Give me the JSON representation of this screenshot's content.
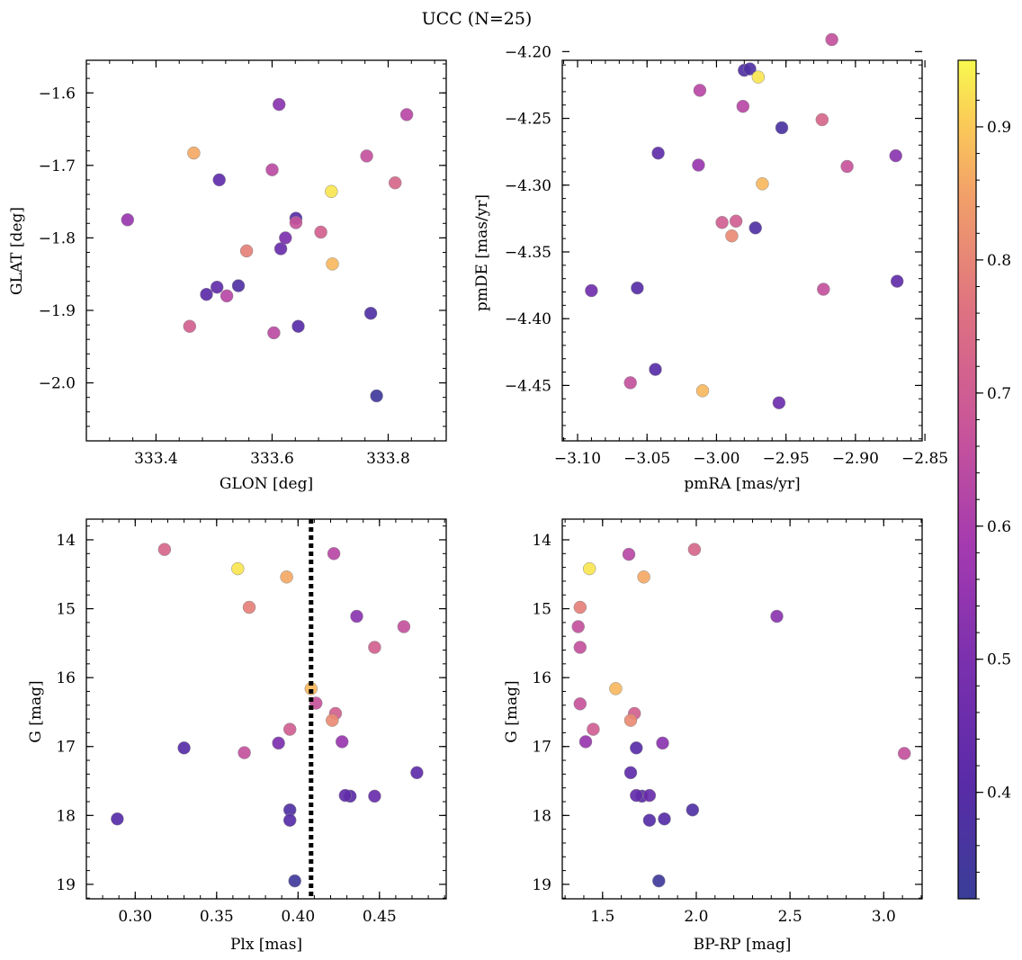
{
  "title": "UCC (N=25)",
  "colorbar": {
    "colormap": "plasma",
    "range": [
      0.32,
      0.95
    ],
    "ticks": [
      "0.4",
      "0.5",
      "0.6",
      "0.7",
      "0.8",
      "0.9"
    ]
  },
  "chart_data": [
    {
      "type": "scatter",
      "xlabel": "GLON [deg]",
      "ylabel": "GLAT [deg]",
      "xlim": [
        333.28,
        333.9
      ],
      "ylim": [
        -2.08,
        -1.555
      ],
      "y_inverted": false,
      "xticks": [
        333.4,
        333.6,
        333.8
      ],
      "xtick_labels": [
        "333.4",
        "333.6",
        "333.8"
      ],
      "yticks": [
        -1.6,
        -1.7,
        -1.8,
        -1.9,
        -2.0
      ],
      "ytick_labels": [
        "−1.6",
        "−1.7",
        "−1.8",
        "−1.9",
        "−2.0"
      ],
      "points": [
        {
          "x": 333.351,
          "y": -1.775,
          "c": 0.56
        },
        {
          "x": 333.465,
          "y": -1.683,
          "c": 0.86
        },
        {
          "x": 333.509,
          "y": -1.72,
          "c": 0.42
        },
        {
          "x": 333.612,
          "y": -1.616,
          "c": 0.53
        },
        {
          "x": 333.6,
          "y": -1.706,
          "c": 0.64
        },
        {
          "x": 333.832,
          "y": -1.63,
          "c": 0.63
        },
        {
          "x": 333.763,
          "y": -1.687,
          "c": 0.66
        },
        {
          "x": 333.812,
          "y": -1.724,
          "c": 0.73
        },
        {
          "x": 333.702,
          "y": -1.736,
          "c": 0.93
        },
        {
          "x": 333.641,
          "y": -1.773,
          "c": 0.4
        },
        {
          "x": 333.641,
          "y": -1.779,
          "c": 0.67
        },
        {
          "x": 333.623,
          "y": -1.8,
          "c": 0.5
        },
        {
          "x": 333.684,
          "y": -1.792,
          "c": 0.71
        },
        {
          "x": 333.556,
          "y": -1.818,
          "c": 0.79
        },
        {
          "x": 333.615,
          "y": -1.815,
          "c": 0.45
        },
        {
          "x": 333.704,
          "y": -1.836,
          "c": 0.88
        },
        {
          "x": 333.542,
          "y": -1.866,
          "c": 0.38
        },
        {
          "x": 333.505,
          "y": -1.868,
          "c": 0.43
        },
        {
          "x": 333.522,
          "y": -1.88,
          "c": 0.63
        },
        {
          "x": 333.487,
          "y": -1.878,
          "c": 0.41
        },
        {
          "x": 333.458,
          "y": -1.922,
          "c": 0.71
        },
        {
          "x": 333.603,
          "y": -1.931,
          "c": 0.64
        },
        {
          "x": 333.645,
          "y": -1.922,
          "c": 0.4
        },
        {
          "x": 333.77,
          "y": -1.904,
          "c": 0.38
        },
        {
          "x": 333.78,
          "y": -2.018,
          "c": 0.34
        }
      ]
    },
    {
      "type": "scatter",
      "xlabel": "pmRA [mas/yr]",
      "ylabel": "pmDE [mas/yr]",
      "xlim": [
        -3.111,
        -2.852
      ],
      "ylim": [
        -4.4915,
        -4.2065
      ],
      "y_inverted": false,
      "xticks": [
        -3.1,
        -3.05,
        -3.0,
        -2.95,
        -2.9,
        -2.85
      ],
      "xtick_labels": [
        "−3.10",
        "−3.05",
        "−3.00",
        "−2.95",
        "−2.90",
        "−2.85"
      ],
      "yticks": [
        -4.2,
        -4.25,
        -4.3,
        -4.35,
        -4.4,
        -4.45
      ],
      "ytick_labels": [
        "−4.20",
        "−4.25",
        "−4.30",
        "−4.35",
        "−4.40",
        "−4.45"
      ],
      "points": [
        {
          "x": -2.917,
          "y": -4.191,
          "c": 0.66
        },
        {
          "x": -2.98,
          "y": -4.214,
          "c": 0.38
        },
        {
          "x": -2.976,
          "y": -4.213,
          "c": 0.38
        },
        {
          "x": -2.97,
          "y": -4.219,
          "c": 0.93
        },
        {
          "x": -3.012,
          "y": -4.229,
          "c": 0.63
        },
        {
          "x": -2.981,
          "y": -4.241,
          "c": 0.63
        },
        {
          "x": -2.924,
          "y": -4.251,
          "c": 0.73
        },
        {
          "x": -2.953,
          "y": -4.257,
          "c": 0.37
        },
        {
          "x": -3.042,
          "y": -4.276,
          "c": 0.42
        },
        {
          "x": -2.871,
          "y": -4.278,
          "c": 0.53
        },
        {
          "x": -3.013,
          "y": -4.285,
          "c": 0.56
        },
        {
          "x": -2.906,
          "y": -4.286,
          "c": 0.67
        },
        {
          "x": -2.967,
          "y": -4.299,
          "c": 0.88
        },
        {
          "x": -2.996,
          "y": -4.328,
          "c": 0.7
        },
        {
          "x": -2.986,
          "y": -4.327,
          "c": 0.7
        },
        {
          "x": -2.972,
          "y": -4.332,
          "c": 0.38
        },
        {
          "x": -2.989,
          "y": -4.338,
          "c": 0.81
        },
        {
          "x": -3.09,
          "y": -4.379,
          "c": 0.47
        },
        {
          "x": -3.057,
          "y": -4.377,
          "c": 0.4
        },
        {
          "x": -2.923,
          "y": -4.378,
          "c": 0.66
        },
        {
          "x": -2.87,
          "y": -4.372,
          "c": 0.43
        },
        {
          "x": -3.044,
          "y": -4.438,
          "c": 0.4
        },
        {
          "x": -3.062,
          "y": -4.448,
          "c": 0.66
        },
        {
          "x": -3.01,
          "y": -4.454,
          "c": 0.88
        },
        {
          "x": -2.955,
          "y": -4.463,
          "c": 0.46
        }
      ]
    },
    {
      "type": "scatter",
      "xlabel": "Plx [mas]",
      "ylabel": "G [mag]",
      "xlim": [
        0.27,
        0.491
      ],
      "ylim": [
        13.7,
        19.21
      ],
      "y_inverted": true,
      "vline": {
        "x": 0.408,
        "style": "dotted"
      },
      "xticks": [
        0.3,
        0.35,
        0.4,
        0.45
      ],
      "xtick_labels": [
        "0.30",
        "0.35",
        "0.40",
        "0.45"
      ],
      "yticks": [
        14,
        15,
        16,
        17,
        18,
        19
      ],
      "ytick_labels": [
        "14",
        "15",
        "16",
        "17",
        "18",
        "19"
      ],
      "points": [
        {
          "x": 0.318,
          "y": 14.14,
          "c": 0.73
        },
        {
          "x": 0.363,
          "y": 14.42,
          "c": 0.93
        },
        {
          "x": 0.393,
          "y": 14.54,
          "c": 0.86
        },
        {
          "x": 0.422,
          "y": 14.2,
          "c": 0.63
        },
        {
          "x": 0.37,
          "y": 14.98,
          "c": 0.79
        },
        {
          "x": 0.436,
          "y": 15.11,
          "c": 0.53
        },
        {
          "x": 0.465,
          "y": 15.26,
          "c": 0.66
        },
        {
          "x": 0.447,
          "y": 15.56,
          "c": 0.71
        },
        {
          "x": 0.408,
          "y": 16.16,
          "c": 0.88
        },
        {
          "x": 0.411,
          "y": 16.37,
          "c": 0.67
        },
        {
          "x": 0.423,
          "y": 16.52,
          "c": 0.71
        },
        {
          "x": 0.421,
          "y": 16.62,
          "c": 0.81
        },
        {
          "x": 0.395,
          "y": 16.75,
          "c": 0.7
        },
        {
          "x": 0.427,
          "y": 16.93,
          "c": 0.56
        },
        {
          "x": 0.388,
          "y": 16.95,
          "c": 0.5
        },
        {
          "x": 0.33,
          "y": 17.02,
          "c": 0.4
        },
        {
          "x": 0.367,
          "y": 17.09,
          "c": 0.66
        },
        {
          "x": 0.473,
          "y": 17.38,
          "c": 0.42
        },
        {
          "x": 0.429,
          "y": 17.71,
          "c": 0.43
        },
        {
          "x": 0.432,
          "y": 17.72,
          "c": 0.41
        },
        {
          "x": 0.447,
          "y": 17.72,
          "c": 0.45
        },
        {
          "x": 0.395,
          "y": 17.92,
          "c": 0.38
        },
        {
          "x": 0.395,
          "y": 18.07,
          "c": 0.4
        },
        {
          "x": 0.289,
          "y": 18.05,
          "c": 0.4
        },
        {
          "x": 0.398,
          "y": 18.95,
          "c": 0.34
        }
      ]
    },
    {
      "type": "scatter",
      "xlabel": "BP-RP [mag]",
      "ylabel": "G [mag]",
      "xlim": [
        1.285,
        3.205
      ],
      "ylim": [
        13.7,
        19.21
      ],
      "y_inverted": true,
      "xticks": [
        1.5,
        2.0,
        2.5,
        3.0
      ],
      "xtick_labels": [
        "1.5",
        "2.0",
        "2.5",
        "3.0"
      ],
      "yticks": [
        14,
        15,
        16,
        17,
        18,
        19
      ],
      "ytick_labels": [
        "14",
        "15",
        "16",
        "17",
        "18",
        "19"
      ],
      "points": [
        {
          "x": 1.99,
          "y": 14.14,
          "c": 0.73
        },
        {
          "x": 1.64,
          "y": 14.21,
          "c": 0.63
        },
        {
          "x": 1.43,
          "y": 14.42,
          "c": 0.93
        },
        {
          "x": 1.72,
          "y": 14.54,
          "c": 0.86
        },
        {
          "x": 1.38,
          "y": 14.98,
          "c": 0.79
        },
        {
          "x": 2.43,
          "y": 15.11,
          "c": 0.53
        },
        {
          "x": 1.37,
          "y": 15.26,
          "c": 0.66
        },
        {
          "x": 1.38,
          "y": 15.56,
          "c": 0.66
        },
        {
          "x": 1.57,
          "y": 16.16,
          "c": 0.88
        },
        {
          "x": 1.38,
          "y": 16.38,
          "c": 0.67
        },
        {
          "x": 1.67,
          "y": 16.52,
          "c": 0.71
        },
        {
          "x": 1.65,
          "y": 16.62,
          "c": 0.81
        },
        {
          "x": 1.45,
          "y": 16.75,
          "c": 0.7
        },
        {
          "x": 1.41,
          "y": 16.93,
          "c": 0.56
        },
        {
          "x": 1.82,
          "y": 16.95,
          "c": 0.53
        },
        {
          "x": 1.68,
          "y": 17.02,
          "c": 0.4
        },
        {
          "x": 3.11,
          "y": 17.1,
          "c": 0.66
        },
        {
          "x": 1.65,
          "y": 17.38,
          "c": 0.42
        },
        {
          "x": 1.68,
          "y": 17.71,
          "c": 0.43
        },
        {
          "x": 1.71,
          "y": 17.72,
          "c": 0.41
        },
        {
          "x": 1.75,
          "y": 17.71,
          "c": 0.45
        },
        {
          "x": 1.98,
          "y": 17.92,
          "c": 0.38
        },
        {
          "x": 1.75,
          "y": 18.07,
          "c": 0.4
        },
        {
          "x": 1.83,
          "y": 18.05,
          "c": 0.4
        },
        {
          "x": 1.8,
          "y": 18.95,
          "c": 0.34
        }
      ]
    }
  ]
}
